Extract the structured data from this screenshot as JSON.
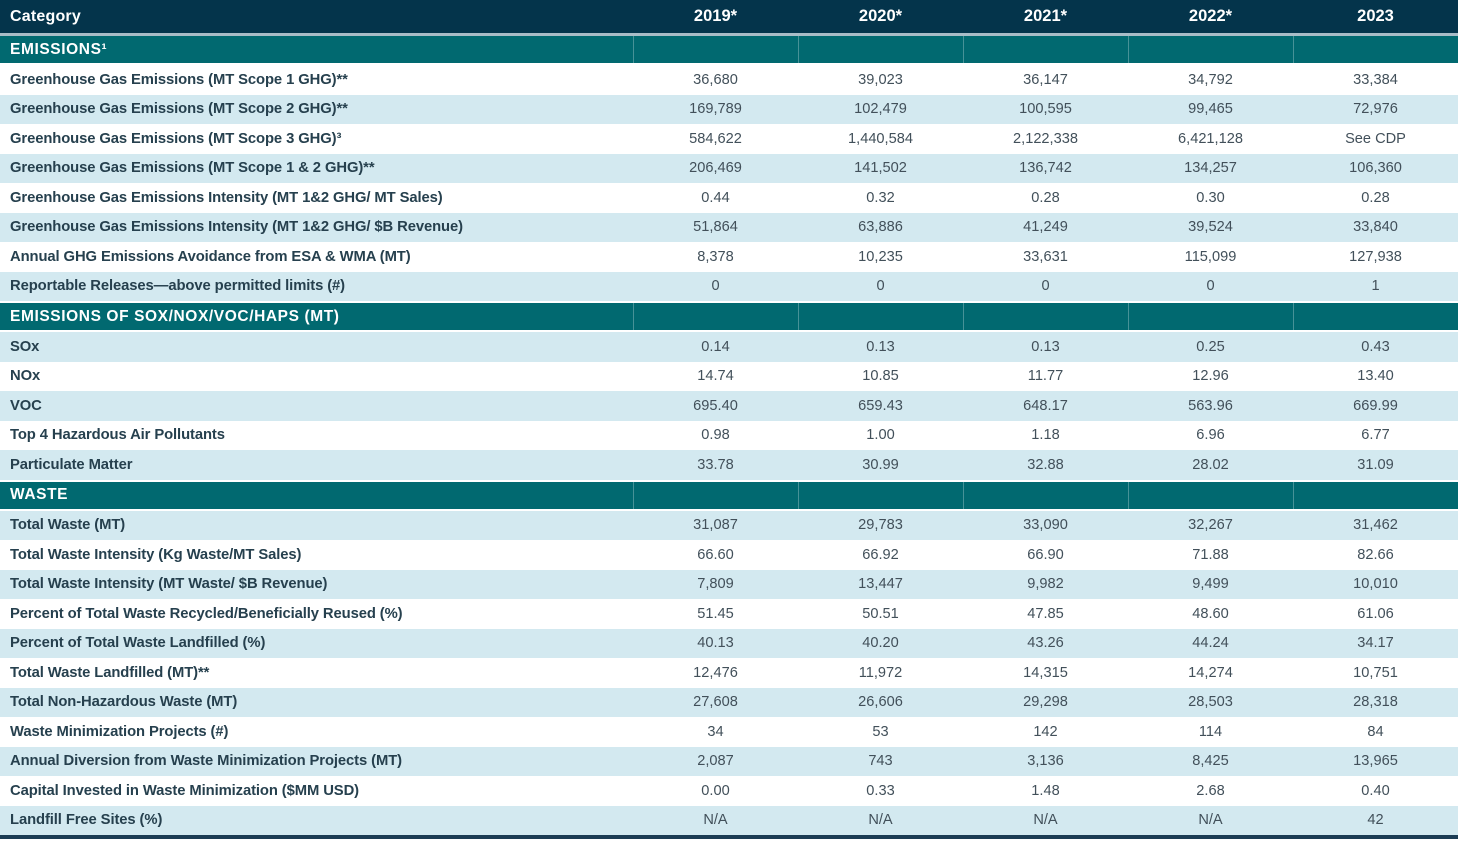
{
  "table": {
    "columns": [
      "Category",
      "2019*",
      "2020*",
      "2021*",
      "2022*",
      "2023"
    ],
    "sections": [
      {
        "title": "EMISSIONS¹",
        "rows": [
          {
            "label": "Greenhouse Gas Emissions (MT Scope 1 GHG)**",
            "values": [
              "36,680",
              "39,023",
              "36,147",
              "34,792",
              "33,384"
            ]
          },
          {
            "label": "Greenhouse Gas Emissions (MT Scope 2 GHG)**",
            "values": [
              "169,789",
              "102,479",
              "100,595",
              "99,465",
              "72,976"
            ]
          },
          {
            "label": "Greenhouse Gas Emissions (MT Scope 3 GHG)³",
            "values": [
              "584,622",
              "1,440,584",
              "2,122,338",
              "6,421,128",
              "See CDP"
            ]
          },
          {
            "label": "Greenhouse Gas Emissions (MT Scope 1 & 2 GHG)**",
            "values": [
              "206,469",
              "141,502",
              "136,742",
              "134,257",
              "106,360"
            ]
          },
          {
            "label": "Greenhouse Gas Emissions Intensity (MT 1&2 GHG/ MT Sales)",
            "values": [
              "0.44",
              "0.32",
              "0.28",
              "0.30",
              "0.28"
            ]
          },
          {
            "label": "Greenhouse Gas Emissions Intensity (MT 1&2 GHG/ $B Revenue)",
            "values": [
              "51,864",
              "63,886",
              "41,249",
              "39,524",
              "33,840"
            ]
          },
          {
            "label": "Annual GHG Emissions Avoidance from ESA & WMA (MT)",
            "values": [
              "8,378",
              "10,235",
              "33,631",
              "115,099",
              "127,938"
            ]
          },
          {
            "label": "Reportable Releases—above permitted limits (#)",
            "values": [
              "0",
              "0",
              "0",
              "0",
              "1"
            ]
          }
        ]
      },
      {
        "title": "EMISSIONS OF SOX/NOX/VOC/HAPS (MT)",
        "rows": [
          {
            "label": "SOx",
            "values": [
              "0.14",
              "0.13",
              "0.13",
              "0.25",
              "0.43"
            ]
          },
          {
            "label": "NOx",
            "values": [
              "14.74",
              "10.85",
              "11.77",
              "12.96",
              "13.40"
            ]
          },
          {
            "label": "VOC",
            "values": [
              "695.40",
              "659.43",
              "648.17",
              "563.96",
              "669.99"
            ]
          },
          {
            "label": "Top 4 Hazardous Air Pollutants",
            "values": [
              "0.98",
              "1.00",
              "1.18",
              "6.96",
              "6.77"
            ]
          },
          {
            "label": "Particulate Matter",
            "values": [
              "33.78",
              "30.99",
              "32.88",
              "28.02",
              "31.09"
            ]
          }
        ]
      },
      {
        "title": "WASTE",
        "rows": [
          {
            "label": "Total Waste (MT)",
            "values": [
              "31,087",
              "29,783",
              "33,090",
              "32,267",
              "31,462"
            ]
          },
          {
            "label": "Total Waste Intensity (Kg Waste/MT Sales)",
            "values": [
              "66.60",
              "66.92",
              "66.90",
              "71.88",
              "82.66"
            ]
          },
          {
            "label": "Total Waste Intensity (MT Waste/ $B Revenue)",
            "values": [
              "7,809",
              "13,447",
              "9,982",
              "9,499",
              "10,010"
            ]
          },
          {
            "label": "Percent of Total Waste Recycled/Beneficially Reused (%)",
            "values": [
              "51.45",
              "50.51",
              "47.85",
              "48.60",
              "61.06"
            ]
          },
          {
            "label": "Percent of Total Waste Landfilled (%)",
            "values": [
              "40.13",
              "40.20",
              "43.26",
              "44.24",
              "34.17"
            ]
          },
          {
            "label": "Total Waste Landfilled (MT)**",
            "values": [
              "12,476",
              "11,972",
              "14,315",
              "14,274",
              "10,751"
            ]
          },
          {
            "label": "Total Non-Hazardous Waste (MT)",
            "values": [
              "27,608",
              "26,606",
              "29,298",
              "28,503",
              "28,318"
            ]
          },
          {
            "label": "Waste Minimization Projects (#)",
            "values": [
              "34",
              "53",
              "142",
              "114",
              "84"
            ]
          },
          {
            "label": "Annual Diversion from Waste Minimization Projects (MT)",
            "values": [
              "2,087",
              "743",
              "3,136",
              "8,425",
              "13,965"
            ]
          },
          {
            "label": "Capital Invested in Waste Minimization ($MM USD)",
            "values": [
              "0.00",
              "0.33",
              "1.48",
              "2.68",
              "0.40"
            ]
          },
          {
            "label": "Landfill Free Sites (%)",
            "values": [
              "N/A",
              "N/A",
              "N/A",
              "N/A",
              "42"
            ]
          }
        ]
      }
    ]
  },
  "colors": {
    "header_bg": "#04344b",
    "section_bg": "#016970",
    "shaded_row_bg": "#d3e9f0",
    "header_text": "#ffffff",
    "label_text": "#26404e",
    "value_text": "#42505a",
    "header_divider": "#a9bcc7",
    "bottom_bar": "#1b3c54"
  }
}
